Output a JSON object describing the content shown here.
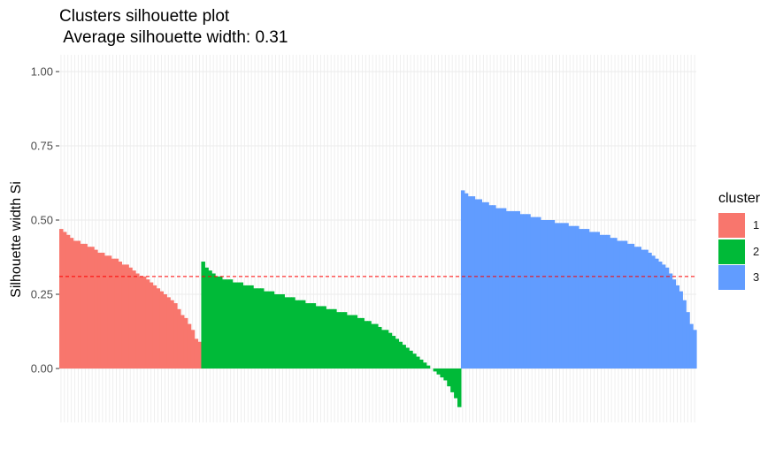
{
  "chart_data": {
    "type": "bar",
    "title": "Clusters silhouette plot",
    "subtitle": " Average silhouette width: 0.31",
    "xlabel": "",
    "ylabel": "Silhouette width Si",
    "ylim": [
      -0.18,
      1.05
    ],
    "yticks": [
      {
        "value": 0.0,
        "label": "0.00"
      },
      {
        "value": 0.25,
        "label": "0.25"
      },
      {
        "value": 0.5,
        "label": "0.50"
      },
      {
        "value": 0.75,
        "label": "0.75"
      },
      {
        "value": 1.0,
        "label": "1.00"
      }
    ],
    "average_line": 0.31,
    "legend": {
      "title": "cluster",
      "position": "right",
      "entries": [
        {
          "label": "1",
          "color": "#F8766D"
        },
        {
          "label": "2",
          "color": "#00BA38"
        },
        {
          "label": "3",
          "color": "#619CFF"
        }
      ]
    },
    "series": [
      {
        "name": "1",
        "color": "#F8766D",
        "values": [
          0.47,
          0.46,
          0.45,
          0.44,
          0.43,
          0.43,
          0.42,
          0.42,
          0.41,
          0.41,
          0.4,
          0.39,
          0.39,
          0.38,
          0.38,
          0.37,
          0.37,
          0.36,
          0.35,
          0.35,
          0.34,
          0.33,
          0.32,
          0.31,
          0.31,
          0.3,
          0.29,
          0.28,
          0.27,
          0.26,
          0.25,
          0.24,
          0.23,
          0.22,
          0.2,
          0.18,
          0.17,
          0.15,
          0.13,
          0.1,
          0.09
        ]
      },
      {
        "name": "2",
        "color": "#00BA38",
        "values": [
          0.36,
          0.34,
          0.33,
          0.32,
          0.31,
          0.31,
          0.3,
          0.3,
          0.3,
          0.29,
          0.29,
          0.29,
          0.28,
          0.28,
          0.28,
          0.27,
          0.27,
          0.27,
          0.26,
          0.26,
          0.26,
          0.25,
          0.25,
          0.25,
          0.24,
          0.24,
          0.24,
          0.23,
          0.23,
          0.23,
          0.22,
          0.22,
          0.22,
          0.21,
          0.21,
          0.21,
          0.2,
          0.2,
          0.2,
          0.19,
          0.19,
          0.19,
          0.18,
          0.18,
          0.18,
          0.17,
          0.17,
          0.16,
          0.16,
          0.15,
          0.15,
          0.14,
          0.13,
          0.13,
          0.12,
          0.11,
          0.1,
          0.09,
          0.08,
          0.07,
          0.06,
          0.05,
          0.04,
          0.03,
          0.02,
          0.01,
          0.0,
          -0.01,
          -0.02,
          -0.03,
          -0.04,
          -0.06,
          -0.08,
          -0.1,
          -0.13
        ]
      },
      {
        "name": "3",
        "color": "#619CFF",
        "values": [
          0.6,
          0.59,
          0.58,
          0.58,
          0.57,
          0.57,
          0.56,
          0.56,
          0.55,
          0.55,
          0.54,
          0.54,
          0.54,
          0.53,
          0.53,
          0.53,
          0.53,
          0.52,
          0.52,
          0.52,
          0.51,
          0.51,
          0.51,
          0.5,
          0.5,
          0.5,
          0.5,
          0.49,
          0.49,
          0.49,
          0.49,
          0.48,
          0.48,
          0.48,
          0.47,
          0.47,
          0.47,
          0.46,
          0.46,
          0.46,
          0.45,
          0.45,
          0.45,
          0.44,
          0.44,
          0.43,
          0.43,
          0.43,
          0.42,
          0.42,
          0.41,
          0.41,
          0.4,
          0.4,
          0.39,
          0.38,
          0.37,
          0.36,
          0.35,
          0.34,
          0.32,
          0.3,
          0.28,
          0.26,
          0.23,
          0.19,
          0.15,
          0.13
        ]
      }
    ]
  }
}
